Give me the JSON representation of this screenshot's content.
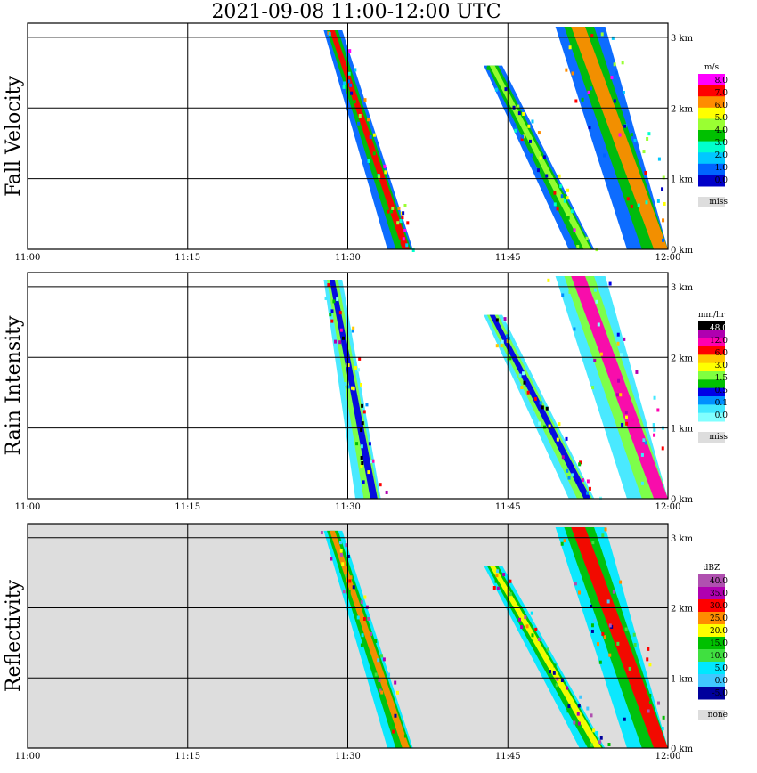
{
  "title": "2021-09-08   11:00-12:00 UTC",
  "chart_data": [
    {
      "type": "heatmap",
      "ylabel": "Fall Velocity",
      "x_ticks": [
        "11:00",
        "11:15",
        "11:30",
        "11:45",
        "12:00"
      ],
      "xlim": [
        "11:00",
        "12:00"
      ],
      "y_ticks": [
        "0 km",
        "1 km",
        "2 km",
        "3 km"
      ],
      "ylim_km": [
        0,
        3.2
      ],
      "background": "white",
      "colorbar": {
        "unit": "m/s",
        "labels": [
          "8.0",
          "7.0",
          "6.0",
          "5.0",
          "4.0",
          "3.0",
          "2.0",
          "1.0",
          "0.0"
        ],
        "colors": [
          "#ff00ff",
          "#ff0000",
          "#ff8c00",
          "#ffff00",
          "#9aff32",
          "#00c000",
          "#00ffcc",
          "#00c8ff",
          "#0064ff",
          "#0000c8"
        ],
        "missing_label": "miss",
        "missing_color": "#dddddd"
      },
      "features": [
        {
          "start": "11:28",
          "end": "11:36",
          "top_km": 3.1,
          "peak_color": "#ff0000"
        },
        {
          "start": "11:43",
          "end": "11:53",
          "top_km": 2.6,
          "peak_color": "#9aff32"
        },
        {
          "start": "11:51",
          "end": "12:00",
          "top_km": 3.15,
          "peak_color": "#ff8c00"
        }
      ]
    },
    {
      "type": "heatmap",
      "ylabel": "Rain Intensity",
      "x_ticks": [
        "11:00",
        "11:15",
        "11:30",
        "11:45",
        "12:00"
      ],
      "xlim": [
        "11:00",
        "12:00"
      ],
      "y_ticks": [
        "0 km",
        "1 km",
        "2 km",
        "3 km"
      ],
      "ylim_km": [
        0,
        3.2
      ],
      "background": "white",
      "colorbar": {
        "unit": "mm/hr",
        "labels": [
          "48.0",
          "12.0",
          "6.0",
          "3.0",
          "1.5",
          "0.5",
          "0.1",
          "0.0"
        ],
        "colors": [
          "#000000",
          "#b000b0",
          "#ff00b0",
          "#ff0000",
          "#ffc800",
          "#ffff00",
          "#80ff40",
          "#00c000",
          "#0000e6",
          "#0090ff",
          "#40e8ff",
          "#80ffff"
        ],
        "missing_label": "miss",
        "missing_color": "#dddddd"
      },
      "features": [
        {
          "start": "11:28",
          "end": "11:33",
          "top_km": 3.1,
          "peak_color": "#0000e6"
        },
        {
          "start": "11:43",
          "end": "11:53",
          "top_km": 2.6,
          "peak_color": "#0000e6"
        },
        {
          "start": "11:51",
          "end": "12:00",
          "top_km": 3.15,
          "peak_color": "#ff00b0"
        }
      ]
    },
    {
      "type": "heatmap",
      "ylabel": "Reflectivity",
      "x_ticks": [
        "11:00",
        "11:15",
        "11:30",
        "11:45",
        "12:00"
      ],
      "xlim": [
        "11:00",
        "12:00"
      ],
      "y_ticks": [
        "0 km",
        "1 km",
        "2 km",
        "3 km"
      ],
      "ylim_km": [
        0,
        3.2
      ],
      "background": "gray",
      "colorbar": {
        "unit": "dBZ",
        "labels": [
          "40.0",
          "35.0",
          "30.0",
          "25.0",
          "20.0",
          "15.0",
          "10.0",
          "5.0",
          "0.0",
          "-5.0"
        ],
        "colors": [
          "#b050b0",
          "#b000b0",
          "#ff0000",
          "#ff8c00",
          "#ffff00",
          "#00c000",
          "#40e040",
          "#00e8ff",
          "#40c8ff",
          "#00009c"
        ],
        "missing_label": "none",
        "missing_color": "#dddddd"
      },
      "features": [
        {
          "start": "11:28",
          "end": "11:36",
          "top_km": 3.1,
          "peak_color": "#ff8c00"
        },
        {
          "start": "11:43",
          "end": "11:54",
          "top_km": 2.6,
          "peak_color": "#ffff00"
        },
        {
          "start": "11:51",
          "end": "12:00",
          "top_km": 3.15,
          "peak_color": "#ff0000"
        }
      ]
    }
  ]
}
